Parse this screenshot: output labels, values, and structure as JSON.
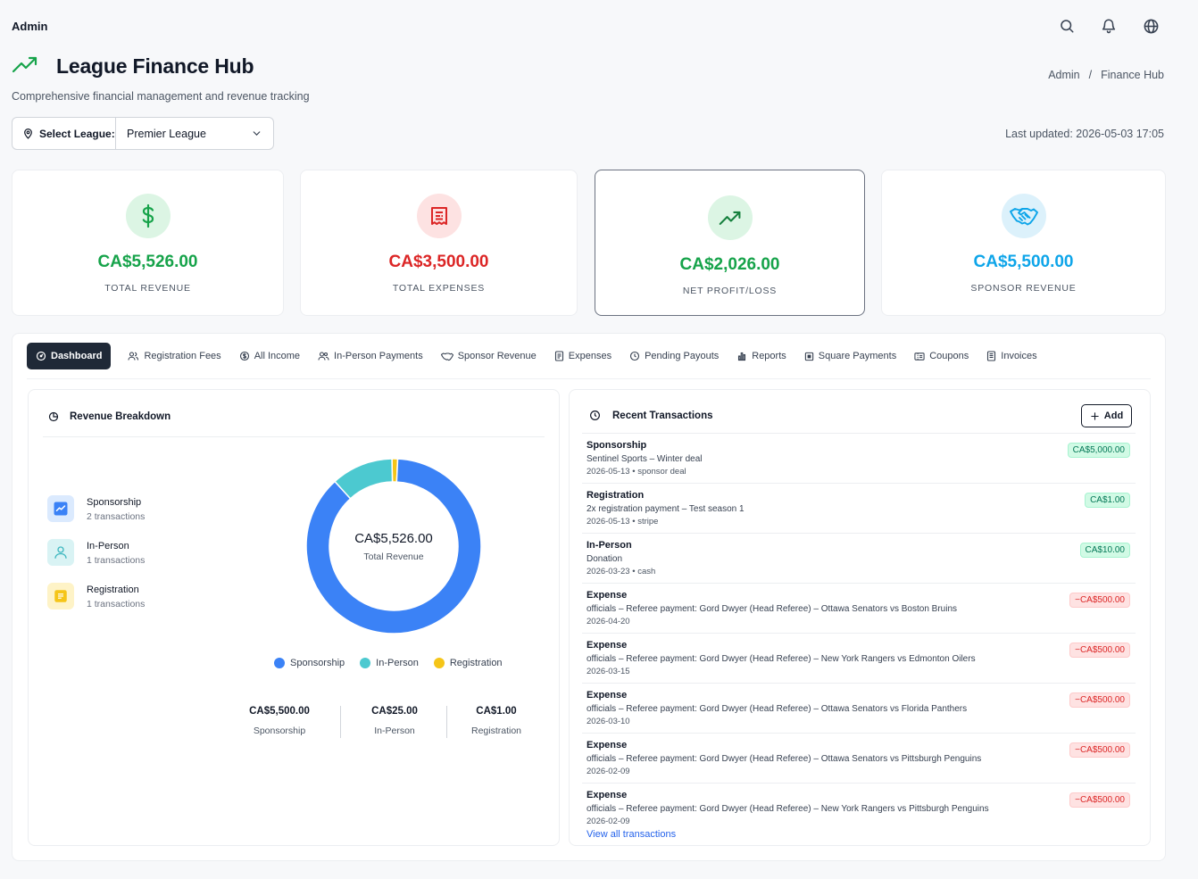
{
  "topbar": {
    "brand": "Admin",
    "icons": [
      "search-icon",
      "bell-icon",
      "globe-icon"
    ]
  },
  "header": {
    "title": "League Finance Hub",
    "subtitle": "Comprehensive financial management and revenue tracking",
    "breadcrumb": [
      "Admin",
      "/",
      "Finance Hub"
    ]
  },
  "league": {
    "label": "Select League:",
    "value": "Premier League"
  },
  "last_updated": "Last updated: 2026-05-03 17:05",
  "stats": [
    {
      "amount": "CA$5,526.00",
      "caption": "TOTAL REVENUE",
      "color": "#16a34a",
      "icon": "dollar-icon"
    },
    {
      "amount": "CA$3,500.00",
      "caption": "TOTAL EXPENSES",
      "color": "#dc2626",
      "icon": "receipt-icon"
    },
    {
      "amount": "CA$2,026.00",
      "caption": "NET PROFIT/LOSS",
      "color": "#16a34a",
      "icon": "trending-up-icon"
    },
    {
      "amount": "CA$5,500.00",
      "caption": "SPONSOR REVENUE",
      "color": "#0ea5e9",
      "icon": "handshake-icon"
    }
  ],
  "tabs": [
    {
      "label": "Dashboard",
      "active": true,
      "icon": "dashboard-icon"
    },
    {
      "label": "Registration Fees",
      "icon": "users-icon"
    },
    {
      "label": "All Income",
      "icon": "dollar-circle-icon"
    },
    {
      "label": "In-Person Payments",
      "icon": "people-icon"
    },
    {
      "label": "Sponsor Revenue",
      "icon": "handshake-icon"
    },
    {
      "label": "Expenses",
      "icon": "receipt-icon"
    },
    {
      "label": "Pending Payouts",
      "icon": "clock-icon"
    },
    {
      "label": "Reports",
      "icon": "bar-chart-icon"
    },
    {
      "label": "Square Payments",
      "icon": "square-icon"
    },
    {
      "label": "Coupons",
      "icon": "coupon-icon"
    },
    {
      "label": "Invoices",
      "icon": "invoice-icon"
    }
  ],
  "revenue": {
    "title": "Revenue Breakdown",
    "sources": [
      {
        "name": "Sponsorship",
        "count": "2 transactions"
      },
      {
        "name": "In-Person",
        "count": "1 transactions"
      },
      {
        "name": "Registration",
        "count": "1 transactions"
      }
    ],
    "center_value": "CA$5,526.00",
    "center_label": "Total Revenue",
    "totals": [
      {
        "value": "CA$5,500.00",
        "label": "Sponsorship"
      },
      {
        "value": "CA$25.00",
        "label": "In-Person"
      },
      {
        "value": "CA$1.00",
        "label": "Registration"
      }
    ]
  },
  "chart_data": {
    "type": "pie",
    "categories": [
      "Sponsorship",
      "In-Person",
      "Registration"
    ],
    "values": [
      5500,
      25,
      1
    ],
    "colors": [
      "#3b82f6",
      "#4cc9d0",
      "#f5c518"
    ],
    "legend": "bottom"
  },
  "transactions": {
    "title": "Recent Transactions",
    "add_label": "Add",
    "view_all": "View all transactions",
    "items": [
      {
        "type": "Sponsorship",
        "desc": "Sentinel Sports – Winter deal",
        "meta": "2026-05-13 • sponsor deal",
        "amount": "CA$5,000.00",
        "sign": "pos"
      },
      {
        "type": "Registration",
        "desc": "2x registration payment – Test season 1",
        "meta": "2026-05-13 • stripe",
        "amount": "CA$1.00",
        "sign": "pos"
      },
      {
        "type": "In-Person",
        "desc": "Donation",
        "meta": "2026-03-23 • cash",
        "amount": "CA$10.00",
        "sign": "pos"
      },
      {
        "type": "Expense",
        "desc": "officials – Referee payment: Gord Dwyer (Head Referee) – Ottawa Senators vs Boston Bruins",
        "meta": "2026-04-20",
        "amount": "−CA$500.00",
        "sign": "neg"
      },
      {
        "type": "Expense",
        "desc": "officials – Referee payment: Gord Dwyer (Head Referee) – New York Rangers vs Edmonton Oilers",
        "meta": "2026-03-15",
        "amount": "−CA$500.00",
        "sign": "neg"
      },
      {
        "type": "Expense",
        "desc": "officials – Referee payment: Gord Dwyer (Head Referee) – Ottawa Senators vs Florida Panthers",
        "meta": "2026-03-10",
        "amount": "−CA$500.00",
        "sign": "neg"
      },
      {
        "type": "Expense",
        "desc": "officials – Referee payment: Gord Dwyer (Head Referee) – Ottawa Senators vs Pittsburgh Penguins",
        "meta": "2026-02-09",
        "amount": "−CA$500.00",
        "sign": "neg"
      },
      {
        "type": "Expense",
        "desc": "officials – Referee payment: Gord Dwyer (Head Referee) – New York Rangers vs Pittsburgh Penguins",
        "meta": "2026-02-09",
        "amount": "−CA$500.00",
        "sign": "neg"
      }
    ]
  }
}
